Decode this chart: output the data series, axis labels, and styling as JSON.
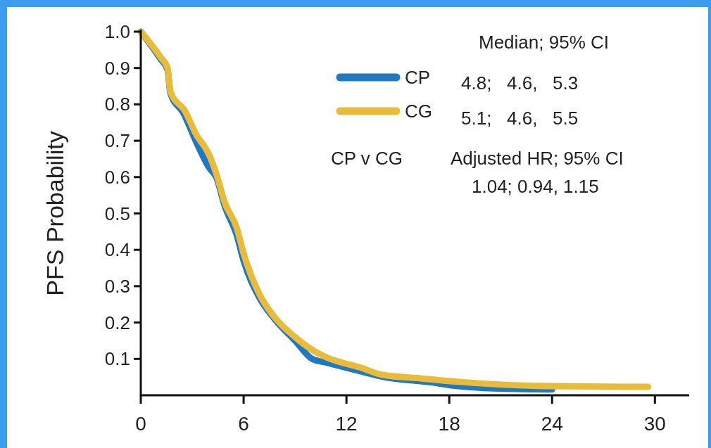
{
  "chart_data": {
    "type": "line",
    "ylabel": "PFS Probability",
    "xlim": [
      0,
      32
    ],
    "xticks": [
      0,
      6,
      12,
      18,
      24,
      30
    ],
    "ylim": [
      0,
      1
    ],
    "yticks": [
      {
        "value": 0.1,
        "label": "0.1"
      },
      {
        "value": 0.2,
        "label": "0.2"
      },
      {
        "value": 0.3,
        "label": "0.3"
      },
      {
        "value": 0.4,
        "label": "0.4"
      },
      {
        "value": 0.5,
        "label": "0.5"
      },
      {
        "value": 0.6,
        "label": "0.6"
      },
      {
        "value": 0.7,
        "label": "0.7"
      },
      {
        "value": 0.8,
        "label": "0.8"
      },
      {
        "value": 0.9,
        "label": "0.9"
      },
      {
        "value": 1,
        "label": "1.0"
      }
    ],
    "grid": false,
    "legend": "top",
    "marker": "none",
    "line_style": "solid",
    "series": [
      {
        "name": "CP",
        "color": "#1f78c1",
        "x": [
          0,
          1.15,
          1.56,
          1.73,
          2.5,
          3.2,
          4.0,
          4.4,
          4.9,
          5.6,
          6.0,
          6.9,
          7.8,
          9.0,
          10.0,
          10.8,
          12.9,
          14,
          17,
          18.5,
          20,
          24
        ],
        "values": [
          1.0,
          0.925,
          0.895,
          0.83,
          0.775,
          0.7,
          0.625,
          0.6,
          0.52,
          0.44,
          0.37,
          0.27,
          0.21,
          0.15,
          0.1,
          0.09,
          0.065,
          0.052,
          0.035,
          0.025,
          0.02,
          0.016
        ]
      },
      {
        "name": "CG",
        "color": "#e8bb3a",
        "x": [
          0,
          1.15,
          1.56,
          1.73,
          2.6,
          3.2,
          4.0,
          4.4,
          4.9,
          5.6,
          6.0,
          6.9,
          7.8,
          9.0,
          10.0,
          10.8,
          12.9,
          14,
          16.4,
          18.5,
          24,
          29.6
        ],
        "values": [
          1.0,
          0.93,
          0.9,
          0.835,
          0.78,
          0.72,
          0.66,
          0.61,
          0.53,
          0.46,
          0.39,
          0.28,
          0.215,
          0.16,
          0.125,
          0.105,
          0.075,
          0.057,
          0.046,
          0.037,
          0.025,
          0.023
        ]
      }
    ],
    "annotations": [
      "Median; 95% CI",
      "4.8;   4.6,   5.3",
      "5.1;   4.6,   5.5",
      "CP v CG",
      "Adjusted HR; 95% CI",
      "1.04; 0.94, 1.15"
    ]
  }
}
